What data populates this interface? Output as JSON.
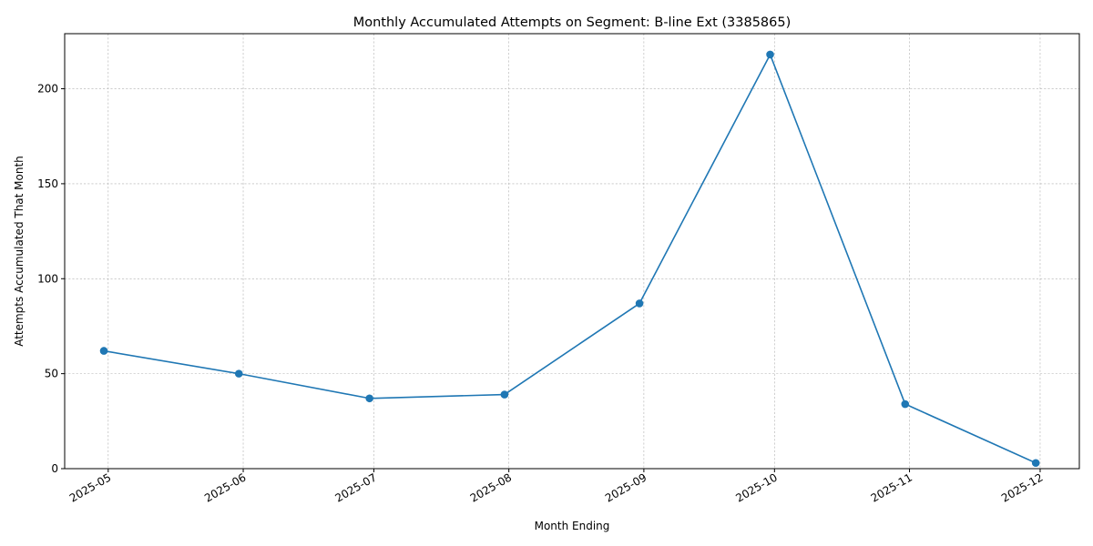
{
  "chart_data": {
    "type": "line",
    "title": "Monthly Accumulated Attempts on Segment: B-line Ext (3385865)",
    "xlabel": "Month Ending",
    "ylabel": "Attempts Accumulated That Month",
    "x_type": "date",
    "xlim": [
      "2025-04-21",
      "2025-12-10"
    ],
    "ylim": [
      0,
      229
    ],
    "x_ticks": [
      "2025-05-01",
      "2025-06-01",
      "2025-07-01",
      "2025-08-01",
      "2025-09-01",
      "2025-10-01",
      "2025-11-01",
      "2025-12-01"
    ],
    "x_tick_labels": [
      "2025-05",
      "2025-06",
      "2025-07",
      "2025-08",
      "2025-09",
      "2025-10",
      "2025-11",
      "2025-12"
    ],
    "y_ticks": [
      0,
      50,
      100,
      150,
      200
    ],
    "y_tick_labels": [
      "0",
      "50",
      "100",
      "150",
      "200"
    ],
    "grid": true,
    "legend": "none",
    "series": [
      {
        "color": "#1f77b4",
        "marker": "circle",
        "x": [
          "2025-04-30",
          "2025-05-31",
          "2025-06-30",
          "2025-07-31",
          "2025-08-31",
          "2025-09-30",
          "2025-10-31",
          "2025-11-30"
        ],
        "y": [
          62,
          50,
          37,
          39,
          87,
          218,
          34,
          3
        ]
      }
    ]
  }
}
